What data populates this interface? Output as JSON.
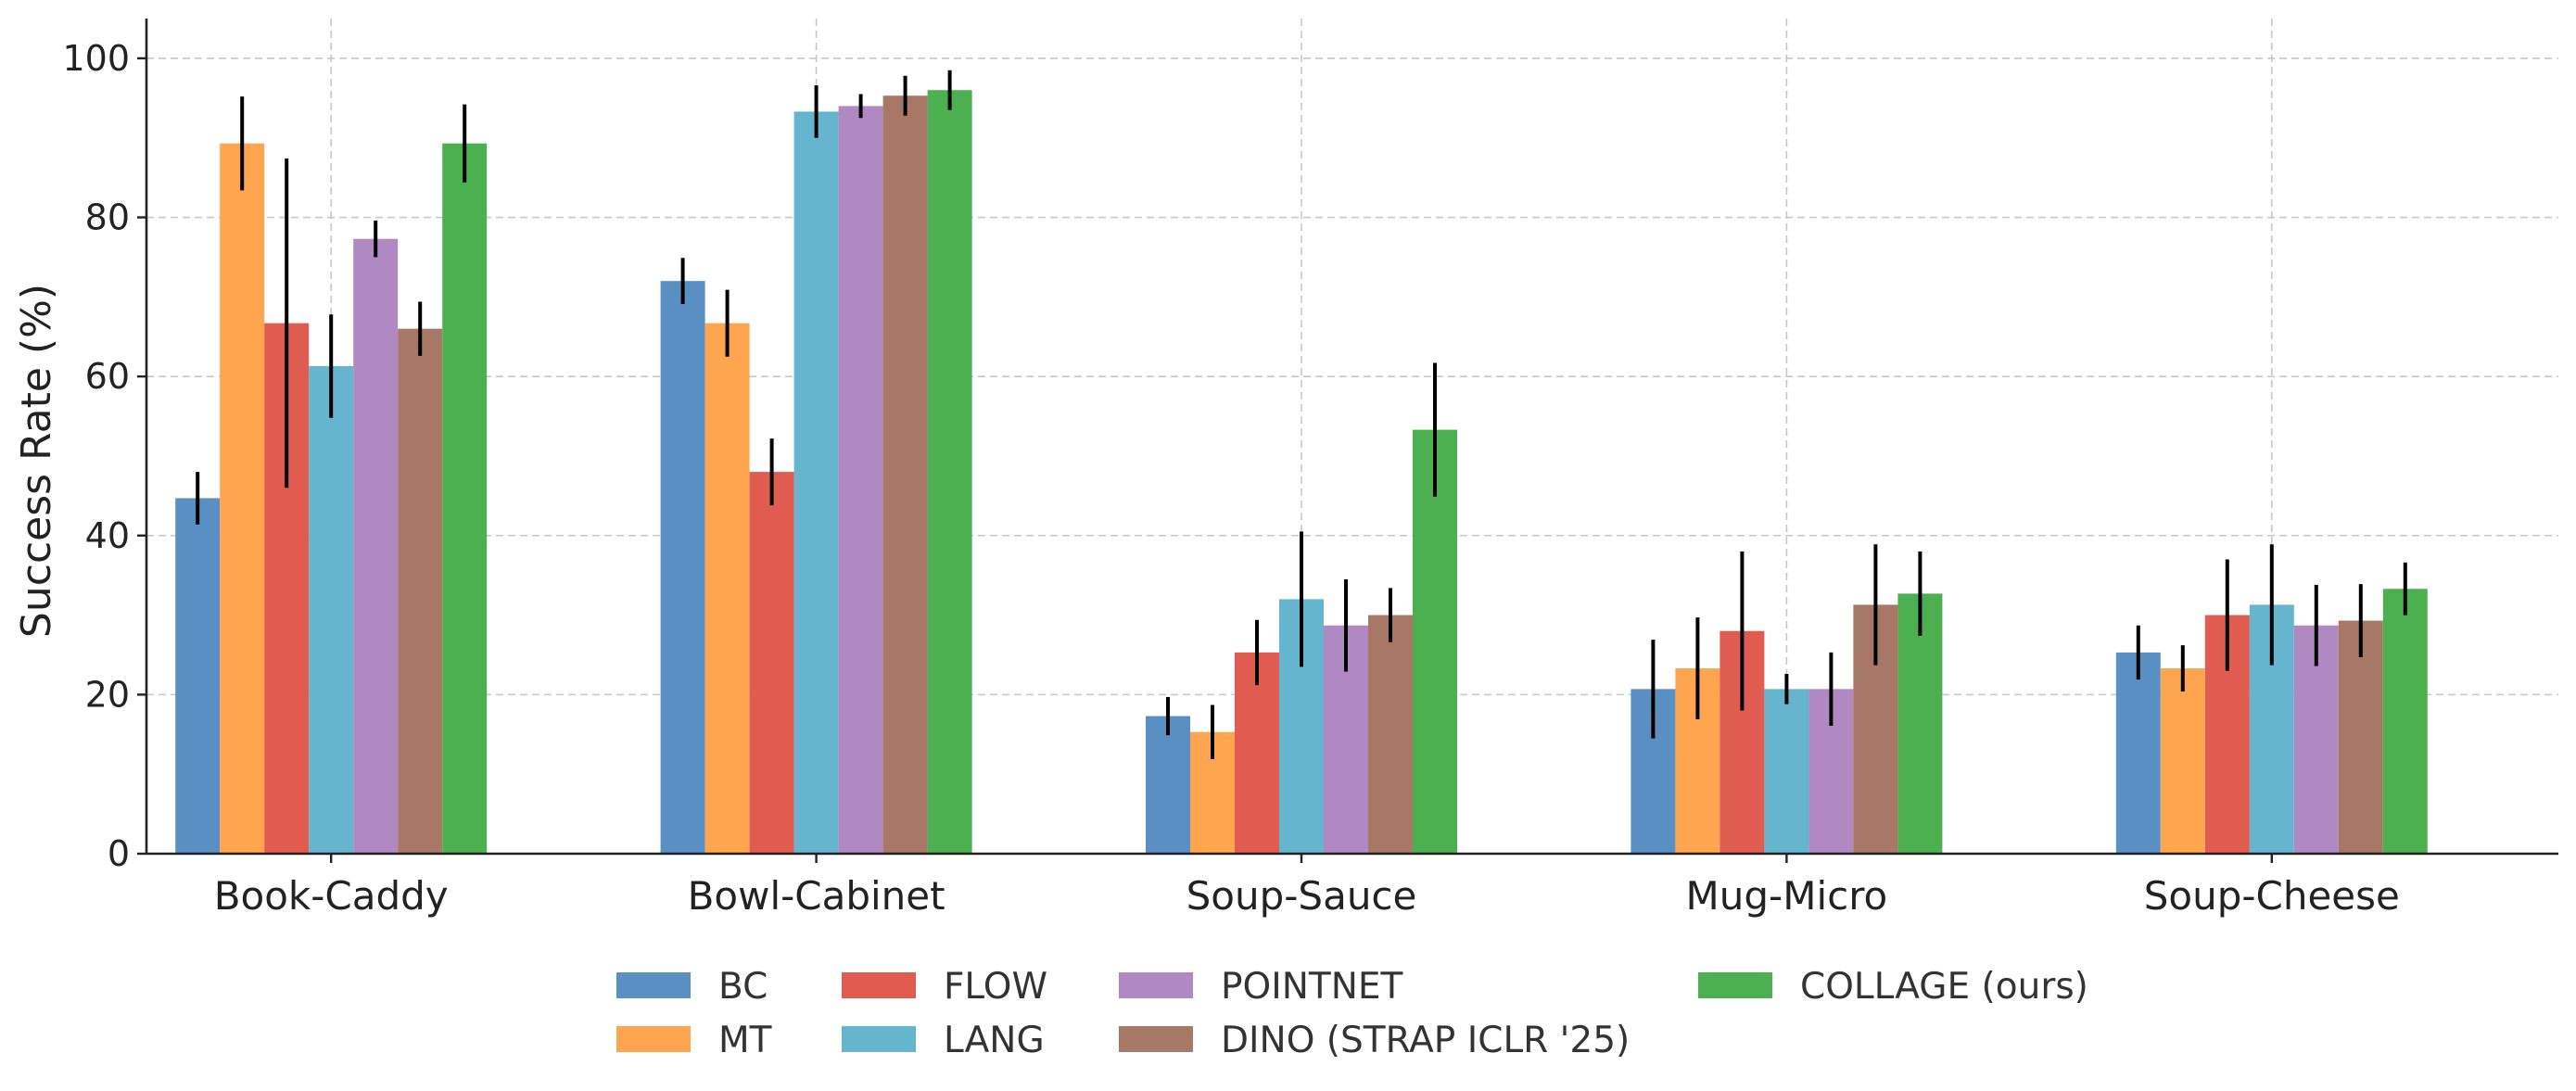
{
  "chart_data": {
    "type": "bar",
    "title": "",
    "xlabel": "",
    "ylabel": "Success Rate (%)",
    "ylim": [
      0,
      105
    ],
    "yticks": [
      0,
      20,
      40,
      60,
      80,
      100
    ],
    "grid": true,
    "legend_position": "bottom-center",
    "categories": [
      "Book-Caddy",
      "Bowl-Cabinet",
      "Soup-Sauce",
      "Mug-Micro",
      "Soup-Cheese"
    ],
    "series": [
      {
        "name": "BC",
        "color": "#5a8fc3",
        "values": [
          44.7,
          72.0,
          17.3,
          20.7,
          25.3
        ],
        "errors": [
          3.3,
          2.9,
          2.4,
          6.2,
          3.4
        ]
      },
      {
        "name": "MT",
        "color": "#ffa54f",
        "values": [
          89.3,
          66.7,
          15.3,
          23.3,
          23.3
        ],
        "errors": [
          5.9,
          4.2,
          3.4,
          6.4,
          2.9
        ]
      },
      {
        "name": "FLOW",
        "color": "#e05c50",
        "values": [
          66.7,
          48.0,
          25.3,
          28.0,
          30.0
        ],
        "errors": [
          20.7,
          4.2,
          4.1,
          10.0,
          7.0
        ]
      },
      {
        "name": "LANG",
        "color": "#66b5cf",
        "values": [
          61.3,
          93.3,
          32.0,
          20.7,
          31.3
        ],
        "errors": [
          6.5,
          3.3,
          8.5,
          1.9,
          7.6
        ]
      },
      {
        "name": "POINTNET",
        "color": "#b088c2",
        "values": [
          77.3,
          94.0,
          28.7,
          20.7,
          28.7
        ],
        "errors": [
          2.3,
          1.5,
          5.8,
          4.6,
          5.1
        ]
      },
      {
        "name": "DINO (STRAP ICLR '25)",
        "color": "#a67865",
        "values": [
          66.0,
          95.3,
          30.0,
          31.3,
          29.3
        ],
        "errors": [
          3.4,
          2.5,
          3.4,
          7.6,
          4.6
        ]
      },
      {
        "name": "COLLAGE (ours)",
        "color": "#4caf50",
        "values": [
          89.3,
          96.0,
          53.3,
          32.7,
          33.3
        ],
        "errors": [
          4.9,
          2.5,
          8.4,
          5.3,
          3.3
        ]
      }
    ]
  }
}
